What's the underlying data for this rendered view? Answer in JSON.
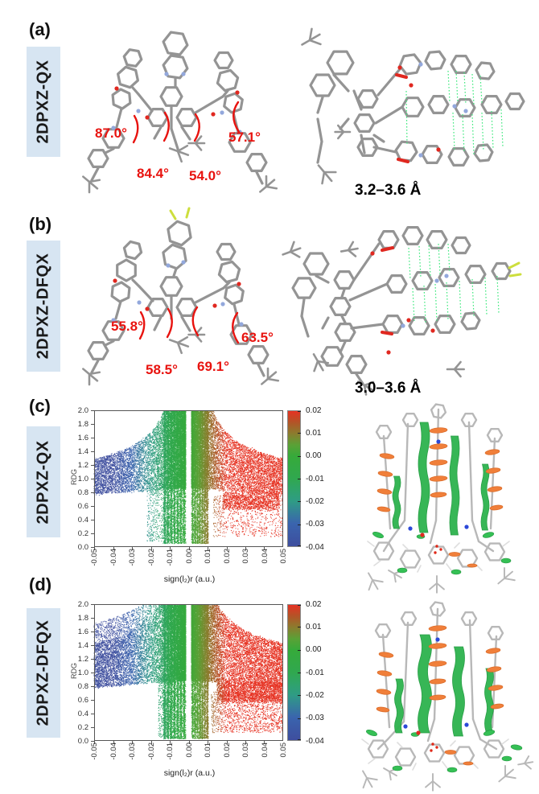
{
  "figure": {
    "panels": {
      "a": {
        "label": "(a)",
        "compound": "2DPXZ-QX",
        "angles": [
          "87.0°",
          "57.1°",
          "84.4°",
          "54.0°"
        ],
        "distance": "3.2–3.6 Å"
      },
      "b": {
        "label": "(b)",
        "compound": "2DPXZ-DFQX",
        "angles": [
          "55.8°",
          "63.5°",
          "58.5°",
          "69.1°"
        ],
        "distance": "3.0–3.6 Å"
      },
      "c": {
        "label": "(c)",
        "compound": "2DPXZ-QX"
      },
      "d": {
        "label": "(d)",
        "compound": "2DPXZ-DFQX"
      }
    },
    "colors": {
      "annotation_red": "#e8130f",
      "tag_background": "#d7e5f2",
      "pi_stacking_green": "#3ce87c",
      "skeleton_gray": "#949494",
      "nitrogen_blue": "#93a8dc",
      "oxygen_red": "#e02820",
      "fluorine_yellow": "#cdde3d",
      "nci_surface_green": "#2db34d",
      "nci_disk_orange": "#f07f3a"
    }
  },
  "chart_data": [
    {
      "panel": "c",
      "type": "scatter",
      "title": "",
      "xlabel": "sign(l₂)r (a.u.)",
      "ylabel": "RDG",
      "xlim": [
        -0.05,
        0.05
      ],
      "ylim": [
        0,
        2
      ],
      "grid": false,
      "legend": "colorbar-right",
      "xticks": [
        -0.05,
        -0.04,
        -0.03,
        -0.02,
        -0.01,
        0.0,
        0.01,
        0.02,
        0.03,
        0.04,
        0.05
      ],
      "xtick_labels": [
        "-0.05",
        "-0.04",
        "-0.03",
        "-0.02",
        "-0.01",
        "0.00",
        "0.01",
        "0.02",
        "0.03",
        "0.04",
        "0.05"
      ],
      "yticks": [
        0.0,
        0.2,
        0.4,
        0.6,
        0.8,
        1.0,
        1.2,
        1.4,
        1.6,
        1.8,
        2.0
      ],
      "ytick_labels": [
        "0.0",
        "0.2",
        "0.4",
        "0.6",
        "0.8",
        "1.0",
        "1.2",
        "1.4",
        "1.6",
        "1.8",
        "2.0"
      ],
      "colorbar": {
        "min": -0.04,
        "max": 0.02,
        "tick_values": [
          0.02,
          0.01,
          0.0,
          -0.01,
          -0.02,
          -0.03,
          -0.04
        ],
        "tick_labels": [
          "0.02",
          "0.01",
          "0.00",
          "-0.01",
          "-0.02",
          "-0.03",
          "-0.04"
        ],
        "stops": [
          [
            -0.04,
            "#3e4e9e"
          ],
          [
            -0.03,
            "#3a64ae"
          ],
          [
            -0.02,
            "#2f9c85"
          ],
          [
            -0.015,
            "#2fa36b"
          ],
          [
            -0.01,
            "#30a84f"
          ],
          [
            0.0,
            "#36aa3a"
          ],
          [
            0.005,
            "#5aa136"
          ],
          [
            0.01,
            "#8a7d2e"
          ],
          [
            0.015,
            "#b35427"
          ],
          [
            0.02,
            "#e63323"
          ]
        ]
      },
      "point_color_rule": "point color = colormap of x value clamped to [-0.04, 0.02]",
      "distribution": {
        "seed": 7,
        "band_bottom_edge": 0.77,
        "band_bottom_slope": 2.0,
        "band_thickness": 0.3,
        "funnel_coef": 0.011,
        "center_gap": 0.0015,
        "columns_left": [
          -0.0135,
          -0.0015
        ],
        "columns_right": [
          0.0015,
          0.0105
        ],
        "columns_ymin": 0.05,
        "n_band": 20000,
        "n_columns": 12000,
        "sparse_below_left": {
          "x": [
            -0.022,
            -0.01
          ],
          "y": [
            0.08,
            0.95
          ],
          "n": 500
        },
        "sparse_below_right": {
          "x": [
            0.013,
            0.05
          ],
          "y": [
            0.15,
            0.75
          ],
          "n": 700
        },
        "blob_right": {
          "x": [
            0.018,
            0.048
          ],
          "y": [
            0.55,
            0.8
          ],
          "n": 1300
        },
        "above_band_noise": {
          "x": [
            -0.05,
            -0.014
          ],
          "dy": 0.0,
          "n": 0
        }
      }
    },
    {
      "panel": "d",
      "type": "scatter",
      "title": "",
      "xlabel": "sign(l₂)r (a.u.)",
      "ylabel": "RDG",
      "xlim": [
        -0.05,
        0.05
      ],
      "ylim": [
        0,
        2
      ],
      "grid": false,
      "legend": "colorbar-right",
      "xticks": [
        -0.05,
        -0.04,
        -0.03,
        -0.02,
        -0.01,
        0.0,
        0.01,
        0.02,
        0.03,
        0.04,
        0.05
      ],
      "xtick_labels": [
        "-0.05",
        "-0.04",
        "-0.03",
        "-0.02",
        "-0.01",
        "0.00",
        "0.01",
        "0.02",
        "0.03",
        "0.04",
        "0.05"
      ],
      "yticks": [
        0.0,
        0.2,
        0.4,
        0.6,
        0.8,
        1.0,
        1.2,
        1.4,
        1.6,
        1.8,
        2.0
      ],
      "ytick_labels": [
        "0.0",
        "0.2",
        "0.4",
        "0.6",
        "0.8",
        "1.0",
        "1.2",
        "1.4",
        "1.6",
        "1.8",
        "2.0"
      ],
      "colorbar": {
        "min": -0.04,
        "max": 0.02,
        "tick_values": [
          0.02,
          0.01,
          0.0,
          -0.01,
          -0.02,
          -0.03,
          -0.04
        ],
        "tick_labels": [
          "0.02",
          "0.01",
          "0.00",
          "-0.01",
          "-0.02",
          "-0.03",
          "-0.04"
        ],
        "stops": [
          [
            -0.04,
            "#3e4e9e"
          ],
          [
            -0.03,
            "#3a64ae"
          ],
          [
            -0.02,
            "#2f9c85"
          ],
          [
            -0.015,
            "#2fa36b"
          ],
          [
            -0.01,
            "#30a84f"
          ],
          [
            0.0,
            "#36aa3a"
          ],
          [
            0.005,
            "#5aa136"
          ],
          [
            0.01,
            "#8a7d2e"
          ],
          [
            0.015,
            "#b35427"
          ],
          [
            0.02,
            "#e63323"
          ]
        ]
      },
      "point_color_rule": "point color = colormap of x value clamped to [-0.04, 0.02]",
      "distribution": {
        "seed": 13,
        "band_bottom_edge": 0.78,
        "band_bottom_slope": 2.2,
        "band_thickness": 0.42,
        "funnel_coef": 0.011,
        "center_gap": 0.0015,
        "columns_left": [
          -0.0135,
          -0.0015
        ],
        "columns_right": [
          0.0015,
          0.0105
        ],
        "columns_ymin": 0.03,
        "n_band": 24000,
        "n_columns": 13000,
        "sparse_below_left": {
          "x": [
            -0.016,
            -0.009
          ],
          "y": [
            0.05,
            0.9
          ],
          "n": 500
        },
        "sparse_below_right": {
          "x": [
            0.012,
            0.05
          ],
          "y": [
            0.12,
            0.72
          ],
          "n": 1400
        },
        "blob_right": {
          "x": [
            0.015,
            0.05
          ],
          "y": [
            0.58,
            0.85
          ],
          "n": 2300
        },
        "above_band_noise": {
          "x": [
            -0.05,
            -0.013
          ],
          "dy": 0.3,
          "n": 900
        }
      }
    }
  ]
}
